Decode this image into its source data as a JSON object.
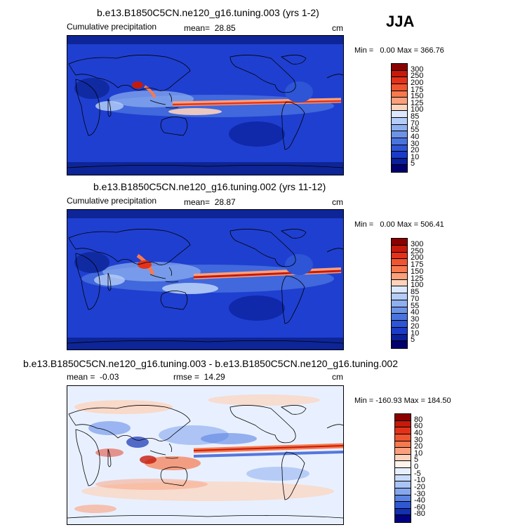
{
  "season": "JJA",
  "panels": [
    {
      "title": "b.e13.B1850C5CN.ne120_g16.tuning.003 (yrs 1-2)",
      "label": "Cumulative precipitation",
      "stat": "mean=  28.85",
      "units": "cm",
      "minmax": "Min =   0.00 Max = 366.76",
      "levels": [
        "300",
        "250",
        "200",
        "175",
        "150",
        "125",
        "100",
        "85",
        "70",
        "55",
        "40",
        "30",
        "20",
        "10",
        "5"
      ],
      "colors": [
        "#8b0000",
        "#c61a0b",
        "#e2331a",
        "#ef5530",
        "#f7794d",
        "#fba07c",
        "#fdd3bc",
        "#dbe8ff",
        "#b5cdf7",
        "#8fb0f0",
        "#6d93e6",
        "#4a73de",
        "#2d55d6",
        "#1a3cc8",
        "#0a1f9a",
        "#00006e"
      ]
    },
    {
      "title": "b.e13.B1850C5CN.ne120_g16.tuning.002 (yrs 11-12)",
      "label": "Cumulative precipitation",
      "stat": "mean=  28.87",
      "units": "cm",
      "minmax": "Min =   0.00 Max = 506.41",
      "levels": [
        "300",
        "250",
        "200",
        "175",
        "150",
        "125",
        "100",
        "85",
        "70",
        "55",
        "40",
        "30",
        "20",
        "10",
        "5"
      ],
      "colors": [
        "#8b0000",
        "#c61a0b",
        "#e2331a",
        "#ef5530",
        "#f7794d",
        "#fba07c",
        "#fdd3bc",
        "#dbe8ff",
        "#b5cdf7",
        "#8fb0f0",
        "#6d93e6",
        "#4a73de",
        "#2d55d6",
        "#1a3cc8",
        "#0a1f9a",
        "#00006e"
      ]
    },
    {
      "title": "b.e13.B1850C5CN.ne120_g16.tuning.003 - b.e13.B1850C5CN.ne120_g16.tuning.002",
      "stat": "mean =  -0.03",
      "stat2": "rmse =  14.29",
      "units": "cm",
      "minmax": "Min = -160.93 Max = 184.50",
      "levels": [
        "80",
        "60",
        "40",
        "30",
        "20",
        "10",
        "5",
        "0",
        "-5",
        "-10",
        "-20",
        "-30",
        "-40",
        "-60",
        "-80"
      ],
      "colors": [
        "#8b0000",
        "#c61a0b",
        "#e2331a",
        "#ef5530",
        "#f7794d",
        "#fba07c",
        "#fdd3bc",
        "#fff4ec",
        "#e8f0ff",
        "#c9dbfb",
        "#a9c3f5",
        "#86a6ee",
        "#5a83e2",
        "#3058d2",
        "#1230b0",
        "#000080"
      ]
    }
  ]
}
